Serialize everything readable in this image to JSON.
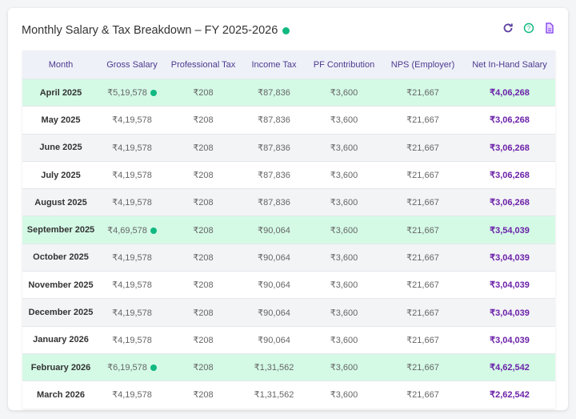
{
  "title": "Monthly Salary & Tax Breakdown – FY 2025-2026",
  "colors": {
    "accent": "#6b21a8",
    "highlight": "#d4fae6",
    "status": "#10b981"
  },
  "icons": [
    "refresh-icon",
    "help-icon",
    "document-icon"
  ],
  "columns": [
    "Month",
    "Gross Salary",
    "Professional Tax",
    "Income Tax",
    "PF Contribution",
    "NPS (Employer)",
    "Net In-Hand Salary"
  ],
  "rows": [
    {
      "month": "April 2025",
      "gross": "₹5,19,578",
      "pt": "₹208",
      "it": "₹87,836",
      "pf": "₹3,600",
      "nps": "₹21,667",
      "net": "₹4,06,268",
      "highlight": true
    },
    {
      "month": "May 2025",
      "gross": "₹4,19,578",
      "pt": "₹208",
      "it": "₹87,836",
      "pf": "₹3,600",
      "nps": "₹21,667",
      "net": "₹3,06,268",
      "highlight": false
    },
    {
      "month": "June 2025",
      "gross": "₹4,19,578",
      "pt": "₹208",
      "it": "₹87,836",
      "pf": "₹3,600",
      "nps": "₹21,667",
      "net": "₹3,06,268",
      "highlight": false
    },
    {
      "month": "July 2025",
      "gross": "₹4,19,578",
      "pt": "₹208",
      "it": "₹87,836",
      "pf": "₹3,600",
      "nps": "₹21,667",
      "net": "₹3,06,268",
      "highlight": false
    },
    {
      "month": "August 2025",
      "gross": "₹4,19,578",
      "pt": "₹208",
      "it": "₹87,836",
      "pf": "₹3,600",
      "nps": "₹21,667",
      "net": "₹3,06,268",
      "highlight": false
    },
    {
      "month": "September 2025",
      "gross": "₹4,69,578",
      "pt": "₹208",
      "it": "₹90,064",
      "pf": "₹3,600",
      "nps": "₹21,667",
      "net": "₹3,54,039",
      "highlight": true
    },
    {
      "month": "October 2025",
      "gross": "₹4,19,578",
      "pt": "₹208",
      "it": "₹90,064",
      "pf": "₹3,600",
      "nps": "₹21,667",
      "net": "₹3,04,039",
      "highlight": false
    },
    {
      "month": "November 2025",
      "gross": "₹4,19,578",
      "pt": "₹208",
      "it": "₹90,064",
      "pf": "₹3,600",
      "nps": "₹21,667",
      "net": "₹3,04,039",
      "highlight": false
    },
    {
      "month": "December 2025",
      "gross": "₹4,19,578",
      "pt": "₹208",
      "it": "₹90,064",
      "pf": "₹3,600",
      "nps": "₹21,667",
      "net": "₹3,04,039",
      "highlight": false
    },
    {
      "month": "January 2026",
      "gross": "₹4,19,578",
      "pt": "₹208",
      "it": "₹90,064",
      "pf": "₹3,600",
      "nps": "₹21,667",
      "net": "₹3,04,039",
      "highlight": false
    },
    {
      "month": "February 2026",
      "gross": "₹6,19,578",
      "pt": "₹208",
      "it": "₹1,31,562",
      "pf": "₹3,600",
      "nps": "₹21,667",
      "net": "₹4,62,542",
      "highlight": true
    },
    {
      "month": "March 2026",
      "gross": "₹4,19,578",
      "pt": "₹208",
      "it": "₹1,31,562",
      "pf": "₹3,600",
      "nps": "₹21,667",
      "net": "₹2,62,542",
      "highlight": false
    }
  ]
}
